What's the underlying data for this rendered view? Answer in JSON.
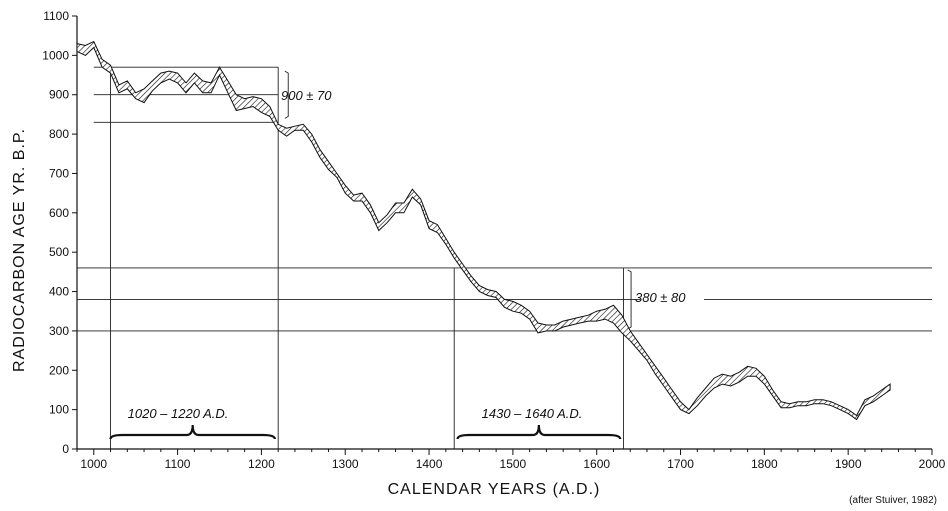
{
  "chart_data": {
    "type": "area",
    "xlabel": "CALENDAR YEARS  (A.D.)",
    "ylabel": "RADIOCARBON AGE  YR.  B.P.",
    "xlim": [
      980,
      2000
    ],
    "ylim": [
      0,
      1100
    ],
    "x_ticks": [
      1000,
      1100,
      1200,
      1300,
      1400,
      1500,
      1600,
      1700,
      1800,
      1900,
      2000
    ],
    "y_ticks": [
      0,
      100,
      200,
      300,
      400,
      500,
      600,
      700,
      800,
      900,
      1000,
      1100
    ],
    "calibration_band": {
      "x": [
        980,
        990,
        1000,
        1010,
        1020,
        1030,
        1040,
        1050,
        1060,
        1070,
        1080,
        1090,
        1100,
        1110,
        1120,
        1130,
        1140,
        1150,
        1160,
        1170,
        1180,
        1190,
        1200,
        1210,
        1220,
        1230,
        1240,
        1250,
        1260,
        1270,
        1280,
        1290,
        1300,
        1310,
        1320,
        1330,
        1340,
        1350,
        1360,
        1370,
        1380,
        1390,
        1400,
        1410,
        1420,
        1430,
        1440,
        1450,
        1460,
        1470,
        1480,
        1490,
        1500,
        1510,
        1520,
        1530,
        1540,
        1550,
        1560,
        1570,
        1580,
        1590,
        1600,
        1610,
        1620,
        1630,
        1640,
        1650,
        1660,
        1670,
        1680,
        1690,
        1700,
        1710,
        1720,
        1730,
        1740,
        1750,
        1760,
        1770,
        1780,
        1790,
        1800,
        1810,
        1820,
        1830,
        1840,
        1850,
        1860,
        1870,
        1880,
        1890,
        1900,
        1910,
        1920,
        1930,
        1940,
        1950
      ],
      "upper": [
        1030,
        1025,
        1035,
        990,
        975,
        925,
        935,
        905,
        915,
        935,
        955,
        960,
        955,
        930,
        955,
        935,
        930,
        970,
        935,
        900,
        890,
        895,
        890,
        870,
        825,
        815,
        820,
        825,
        800,
        760,
        730,
        700,
        670,
        645,
        650,
        620,
        575,
        595,
        625,
        625,
        660,
        635,
        580,
        570,
        535,
        500,
        470,
        440,
        415,
        405,
        400,
        380,
        375,
        365,
        350,
        320,
        315,
        315,
        325,
        330,
        335,
        340,
        350,
        355,
        365,
        340,
        300,
        270,
        240,
        210,
        180,
        150,
        120,
        100,
        130,
        155,
        180,
        190,
        185,
        195,
        210,
        205,
        185,
        150,
        120,
        115,
        120,
        120,
        125,
        125,
        120,
        110,
        100,
        85,
        125,
        135,
        150,
        165
      ],
      "lower": [
        1010,
        1000,
        1020,
        970,
        955,
        905,
        915,
        890,
        880,
        910,
        930,
        940,
        930,
        905,
        930,
        905,
        905,
        950,
        905,
        860,
        865,
        870,
        855,
        845,
        810,
        795,
        810,
        810,
        780,
        740,
        710,
        690,
        650,
        630,
        630,
        600,
        555,
        575,
        600,
        600,
        640,
        620,
        560,
        550,
        520,
        485,
        455,
        425,
        400,
        390,
        385,
        360,
        350,
        345,
        330,
        295,
        300,
        300,
        310,
        315,
        320,
        325,
        325,
        330,
        320,
        295,
        275,
        250,
        225,
        190,
        160,
        130,
        100,
        90,
        110,
        135,
        155,
        165,
        160,
        170,
        185,
        185,
        165,
        135,
        105,
        105,
        110,
        110,
        115,
        115,
        110,
        100,
        90,
        75,
        110,
        120,
        135,
        150
      ]
    },
    "reference_lines": {
      "top_box": {
        "y_values": [
          970,
          900,
          830
        ],
        "x_range": [
          1020,
          1220
        ]
      },
      "bottom_box": {
        "y_values": [
          460,
          380,
          300
        ],
        "x_range": [
          1430,
          1640
        ]
      }
    },
    "annotations": {
      "age_top": "900 ± 70",
      "age_bottom": "380 ± 80",
      "range_top": "1020 – 1220 A.D.",
      "range_bottom": "1430 – 1640 A.D."
    },
    "credit": "(after Stuiver,  1982)"
  }
}
